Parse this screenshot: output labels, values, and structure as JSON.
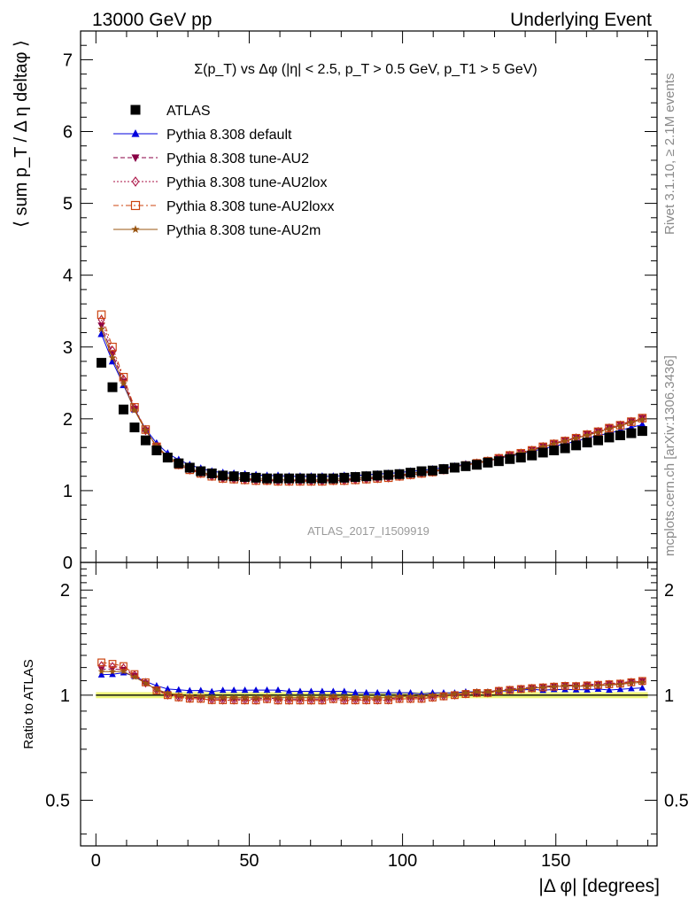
{
  "header": {
    "left": "13000 GeV pp",
    "right": "Underlying Event"
  },
  "side_labels": {
    "rivet": "Rivet 3.1.10, ≥ 2.1M events",
    "mcplots": "mcplots.cern.ch [arXiv:1306.3436]"
  },
  "chart_data": [
    {
      "type": "scatter",
      "title": "Σ(p_T) vs Δφ (|η| < 2.5, p_T > 0.5 GeV, p_T1 > 5 GeV)",
      "watermark": "ATLAS_2017_I1509919",
      "ylabel": "⟨ sum p_T / Δ η deltaφ ⟩",
      "xlabel": "",
      "xlim": [
        -5,
        183
      ],
      "ylim": [
        0,
        7.4
      ],
      "yticks": [
        0,
        1,
        2,
        3,
        4,
        5,
        6,
        7
      ],
      "legend_position": "top-left",
      "x": [
        1.8,
        5.4,
        9.0,
        12.6,
        16.2,
        19.8,
        23.4,
        27.0,
        30.6,
        34.2,
        37.8,
        41.4,
        45.0,
        48.6,
        52.2,
        55.8,
        59.4,
        63.0,
        66.6,
        70.2,
        73.8,
        77.4,
        81.0,
        84.6,
        88.2,
        91.8,
        95.4,
        99.0,
        102.6,
        106.2,
        109.8,
        113.4,
        117.0,
        120.6,
        124.2,
        127.8,
        131.4,
        135.0,
        138.6,
        142.2,
        145.8,
        149.4,
        153.0,
        156.6,
        160.2,
        163.8,
        167.4,
        171.0,
        174.6,
        178.2
      ],
      "series": [
        {
          "name": "ATLAS",
          "marker": "filled-square",
          "color": "#000000",
          "line": "none",
          "values": [
            2.78,
            2.44,
            2.13,
            1.88,
            1.7,
            1.56,
            1.46,
            1.38,
            1.32,
            1.27,
            1.24,
            1.21,
            1.2,
            1.19,
            1.18,
            1.17,
            1.17,
            1.17,
            1.17,
            1.17,
            1.17,
            1.17,
            1.18,
            1.19,
            1.2,
            1.21,
            1.22,
            1.23,
            1.25,
            1.27,
            1.28,
            1.3,
            1.32,
            1.34,
            1.36,
            1.39,
            1.41,
            1.44,
            1.46,
            1.49,
            1.53,
            1.56,
            1.59,
            1.63,
            1.67,
            1.7,
            1.74,
            1.77,
            1.8,
            1.83
          ]
        },
        {
          "name": "Pythia 8.308 default",
          "marker": "filled-triangle-up",
          "color": "#0000dd",
          "line": "solid",
          "values": [
            3.18,
            2.8,
            2.47,
            2.13,
            1.86,
            1.66,
            1.52,
            1.43,
            1.36,
            1.31,
            1.27,
            1.25,
            1.24,
            1.23,
            1.22,
            1.21,
            1.21,
            1.2,
            1.2,
            1.2,
            1.2,
            1.2,
            1.21,
            1.21,
            1.22,
            1.23,
            1.24,
            1.25,
            1.27,
            1.28,
            1.3,
            1.32,
            1.34,
            1.37,
            1.39,
            1.42,
            1.45,
            1.48,
            1.51,
            1.55,
            1.58,
            1.62,
            1.65,
            1.69,
            1.73,
            1.77,
            1.8,
            1.84,
            1.88,
            1.92
          ]
        },
        {
          "name": "Pythia 8.308 tune-AU2",
          "marker": "filled-triangle-down",
          "color": "#880044",
          "line": "dashed",
          "values": [
            3.3,
            2.9,
            2.52,
            2.14,
            1.84,
            1.62,
            1.47,
            1.37,
            1.3,
            1.25,
            1.21,
            1.18,
            1.17,
            1.16,
            1.15,
            1.15,
            1.14,
            1.14,
            1.14,
            1.14,
            1.14,
            1.15,
            1.15,
            1.16,
            1.17,
            1.18,
            1.19,
            1.21,
            1.23,
            1.25,
            1.27,
            1.3,
            1.33,
            1.36,
            1.39,
            1.42,
            1.46,
            1.5,
            1.53,
            1.57,
            1.62,
            1.66,
            1.7,
            1.74,
            1.79,
            1.83,
            1.88,
            1.92,
            1.97,
            2.01
          ]
        },
        {
          "name": "Pythia 8.308 tune-AU2lox",
          "marker": "open-diamond",
          "color": "#aa1144",
          "line": "dotted",
          "values": [
            3.38,
            2.95,
            2.55,
            2.15,
            1.84,
            1.61,
            1.46,
            1.36,
            1.29,
            1.24,
            1.2,
            1.17,
            1.16,
            1.15,
            1.14,
            1.14,
            1.13,
            1.13,
            1.13,
            1.13,
            1.13,
            1.14,
            1.14,
            1.15,
            1.16,
            1.17,
            1.18,
            1.2,
            1.22,
            1.24,
            1.26,
            1.29,
            1.32,
            1.35,
            1.38,
            1.41,
            1.45,
            1.49,
            1.52,
            1.56,
            1.61,
            1.65,
            1.69,
            1.73,
            1.78,
            1.82,
            1.87,
            1.91,
            1.96,
            2.0
          ]
        },
        {
          "name": "Pythia 8.308 tune-AU2loxx",
          "marker": "open-square",
          "color": "#cc4411",
          "line": "dash-dot",
          "values": [
            3.45,
            3.0,
            2.58,
            2.16,
            1.85,
            1.61,
            1.46,
            1.36,
            1.29,
            1.24,
            1.2,
            1.17,
            1.16,
            1.15,
            1.14,
            1.14,
            1.13,
            1.13,
            1.13,
            1.13,
            1.13,
            1.14,
            1.14,
            1.15,
            1.16,
            1.17,
            1.18,
            1.2,
            1.22,
            1.24,
            1.26,
            1.29,
            1.32,
            1.35,
            1.38,
            1.41,
            1.45,
            1.49,
            1.52,
            1.56,
            1.61,
            1.65,
            1.69,
            1.73,
            1.78,
            1.82,
            1.87,
            1.91,
            1.96,
            2.01
          ]
        },
        {
          "name": "Pythia 8.308 tune-AU2m",
          "marker": "filled-star",
          "color": "#995511",
          "line": "solid",
          "values": [
            3.25,
            2.85,
            2.49,
            2.12,
            1.84,
            1.62,
            1.48,
            1.38,
            1.31,
            1.26,
            1.22,
            1.19,
            1.18,
            1.17,
            1.16,
            1.16,
            1.15,
            1.15,
            1.15,
            1.15,
            1.15,
            1.16,
            1.16,
            1.17,
            1.18,
            1.19,
            1.2,
            1.22,
            1.24,
            1.26,
            1.28,
            1.3,
            1.33,
            1.36,
            1.39,
            1.42,
            1.45,
            1.49,
            1.52,
            1.56,
            1.61,
            1.65,
            1.69,
            1.73,
            1.77,
            1.81,
            1.86,
            1.9,
            1.95,
            1.99
          ]
        }
      ]
    },
    {
      "type": "scatter",
      "ylabel": "Ratio to ATLAS",
      "xlabel": "|Δ φ| [degrees]",
      "xlim": [
        -5,
        183
      ],
      "ylim": [
        0.37,
        2.4
      ],
      "yscale": "log",
      "yticks": [
        0.5,
        1,
        2
      ],
      "xticks": [
        0,
        50,
        100,
        150
      ],
      "reference_band": {
        "center": 1,
        "halfwidth": 0.02,
        "color": "#eef77a"
      },
      "series_ratio_to": "ATLAS"
    }
  ]
}
